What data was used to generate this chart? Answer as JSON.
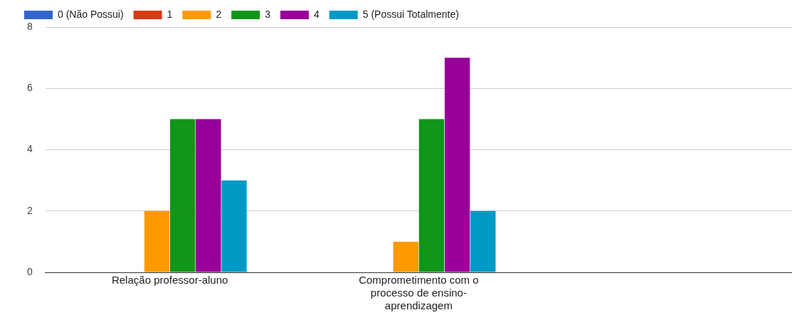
{
  "chart_data": {
    "type": "bar",
    "categories": [
      "Relação professor-aluno",
      "Comprometimento com o processo de ensino-aprendizagem",
      null
    ],
    "series": [
      {
        "name": "0 (Não Possui)",
        "color": "#3366cc",
        "values": [
          0,
          0,
          null
        ]
      },
      {
        "name": "1",
        "color": "#dc3912",
        "values": [
          0,
          0,
          null
        ]
      },
      {
        "name": "2",
        "color": "#ff9900",
        "values": [
          2,
          1,
          null
        ]
      },
      {
        "name": "3",
        "color": "#109618",
        "values": [
          5,
          5,
          null
        ]
      },
      {
        "name": "4",
        "color": "#990099",
        "values": [
          5,
          7,
          null
        ]
      },
      {
        "name": "5 (Possui Totalmente)",
        "color": "#0099c6",
        "values": [
          3,
          2,
          null
        ]
      }
    ],
    "ylim": [
      0,
      8
    ],
    "yticks": [
      0,
      2,
      4,
      6,
      8
    ],
    "grid": "y",
    "legend": "top left"
  }
}
